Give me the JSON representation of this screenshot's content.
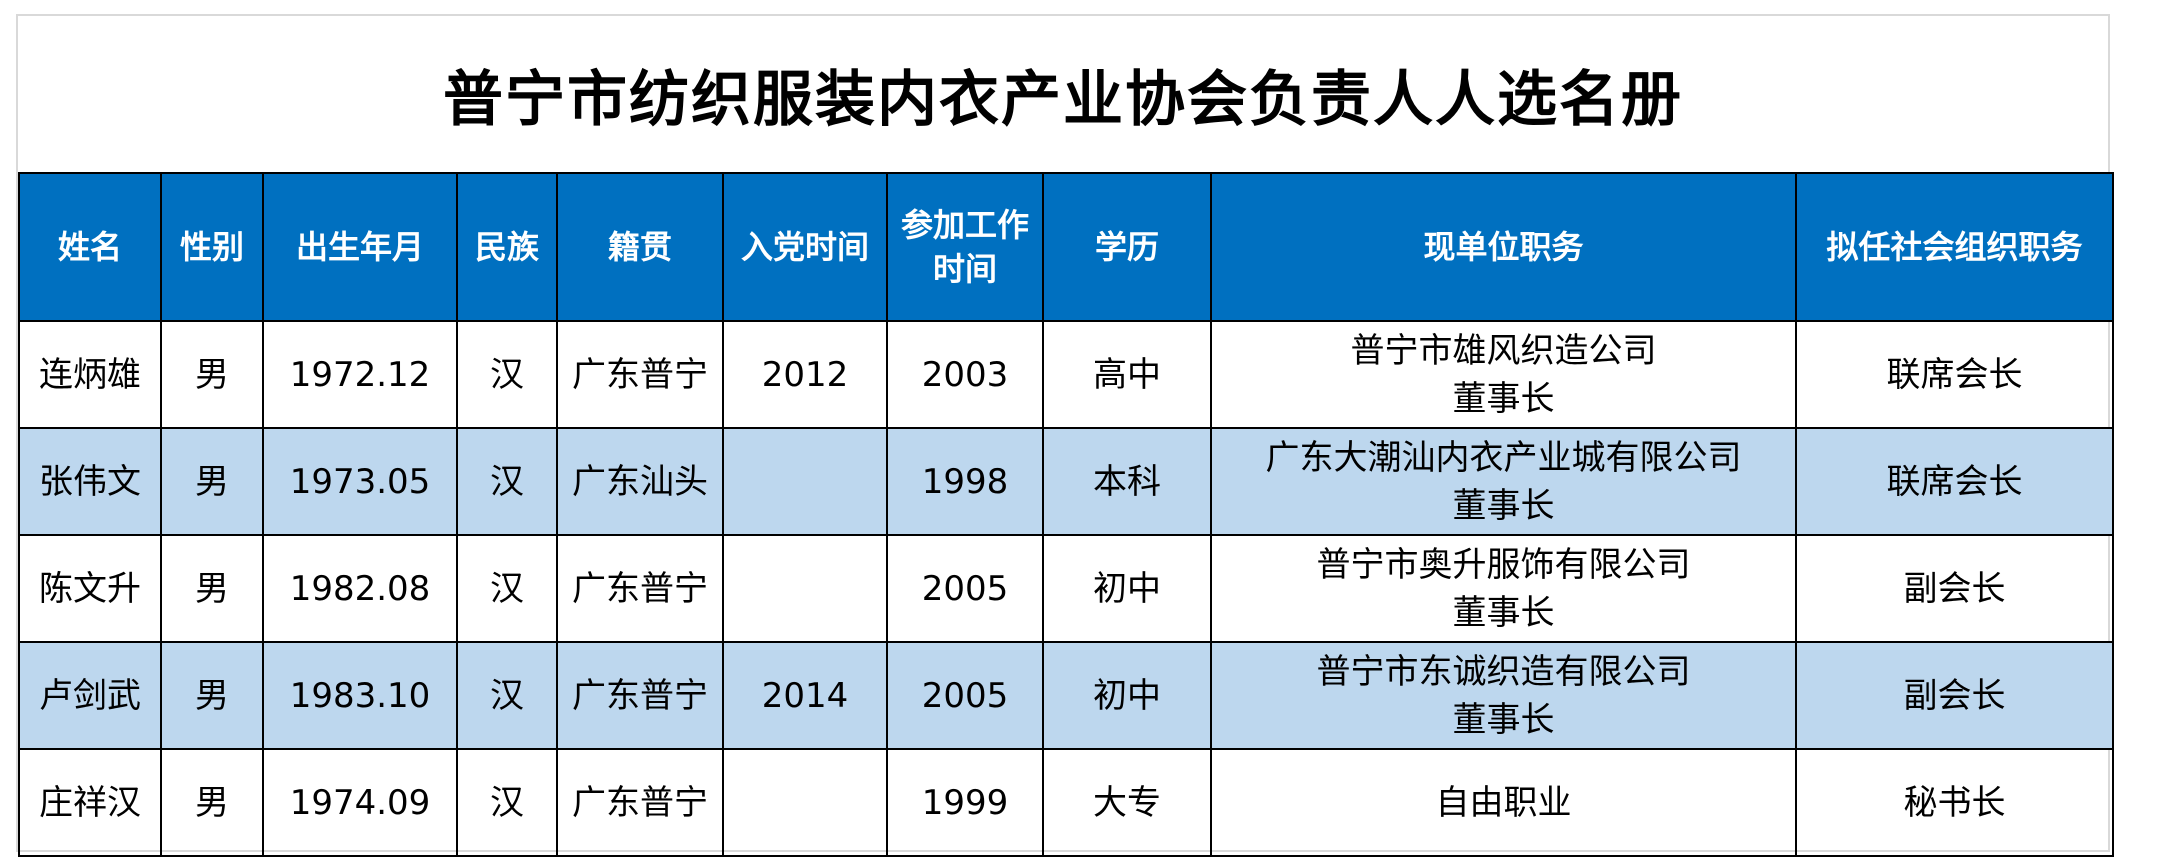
{
  "title": "普宁市纺织服装内衣产业协会负责人人选名册",
  "headers": [
    "姓名",
    "性别",
    "出生年月",
    "民族",
    "籍贯",
    "入党时间",
    [
      "参加工作",
      "时间"
    ],
    "学历",
    "现单位职务",
    "拟任社会组织职务"
  ],
  "rows": [
    {
      "name": "连炳雄",
      "gender": "男",
      "birth": "1972.12",
      "ethnicity": "汉",
      "native_place": "广东普宁",
      "party_join": "2012",
      "work_start": "2003",
      "education": "高中",
      "position": [
        "普宁市雄风织造公司",
        "董事长"
      ],
      "proposed_role": "联席会长"
    },
    {
      "name": "张伟文",
      "gender": "男",
      "birth": "1973.05",
      "ethnicity": "汉",
      "native_place": "广东汕头",
      "party_join": "",
      "work_start": "1998",
      "education": "本科",
      "position": [
        "广东大潮汕内衣产业城有限公司",
        "董事长"
      ],
      "proposed_role": "联席会长"
    },
    {
      "name": "陈文升",
      "gender": "男",
      "birth": "1982.08",
      "ethnicity": "汉",
      "native_place": "广东普宁",
      "party_join": "",
      "work_start": "2005",
      "education": "初中",
      "position": [
        "普宁市奥升服饰有限公司",
        "董事长"
      ],
      "proposed_role": "副会长"
    },
    {
      "name": "卢剑武",
      "gender": "男",
      "birth": "1983.10",
      "ethnicity": "汉",
      "native_place": "广东普宁",
      "party_join": "2014",
      "work_start": "2005",
      "education": "初中",
      "position": [
        "普宁市东诚织造有限公司",
        "董事长"
      ],
      "proposed_role": "副会长"
    },
    {
      "name": "庄祥汉",
      "gender": "男",
      "birth": "1974.09",
      "ethnicity": "汉",
      "native_place": "广东普宁",
      "party_join": "",
      "work_start": "1999",
      "education": "大专",
      "position": [
        "自由职业"
      ],
      "proposed_role": "秘书长"
    }
  ],
  "colors": {
    "header_bg": "#0070c0",
    "header_text": "#ffffff",
    "stripe": "#bdd7ee",
    "border": "#000000"
  }
}
